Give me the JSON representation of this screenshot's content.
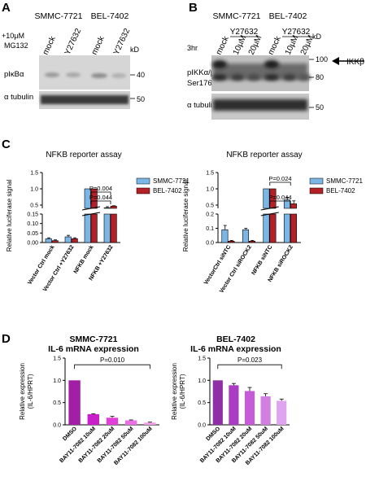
{
  "panels": {
    "A": "A",
    "B": "B",
    "C": "C",
    "D": "D"
  },
  "panel_a": {
    "cell_lines": [
      "SMMC-7721",
      "BEL-7402"
    ],
    "treatment_line1": "+10μM",
    "treatment_line2": "MG132",
    "lane_labels": [
      "mock",
      "Y27632",
      "mock",
      "Y27632"
    ],
    "kd_label": "kD",
    "row_labels": [
      "pIκBα",
      "α tubulin"
    ],
    "markers": [
      "40",
      "50"
    ]
  },
  "panel_b": {
    "cell_lines": [
      "SMMC-7721",
      "BEL-7402"
    ],
    "drug": "Y27632",
    "time": "3hr",
    "lane_labels": [
      "mock",
      "10μM",
      "20μM",
      "mock",
      "10μM",
      "20μM"
    ],
    "kd_label": "kD",
    "row_labels": [
      "pIKKα/β",
      "Ser176/180",
      "α tubulin"
    ],
    "markers": [
      "100",
      "80",
      "50"
    ],
    "arrow_label": "IKKβ"
  },
  "chart_data": [
    {
      "type": "bar",
      "title": "NFKB reporter assay",
      "ylabel": "Relative luciferase signal",
      "categories": [
        "Vector Ctrl mock",
        "Vector Ctrl +Y27632",
        "NFKB mock",
        "NFKB +Y27632"
      ],
      "series": [
        {
          "name": "SMMC-7721",
          "values": [
            0.02,
            0.03,
            1.0,
            0.42
          ],
          "errors": [
            0.005,
            0.008,
            0,
            0.03
          ],
          "color": "#7ab6e6"
        },
        {
          "name": "BEL-7402",
          "values": [
            0.01,
            0.02,
            1.0,
            0.47
          ],
          "errors": [
            0.004,
            0.005,
            0,
            0.01
          ],
          "color": "#b32025"
        }
      ],
      "ylim_lower": [
        0,
        0.15
      ],
      "ylim_upper": [
        0.4,
        1.5
      ],
      "yticks_lower": [
        "0.00",
        "0.05",
        "0.10",
        "0.15"
      ],
      "yticks_upper": [
        "0.5",
        "1.0",
        "1.5"
      ],
      "annotations": [
        "P=0.044",
        "P=0.004"
      ]
    },
    {
      "type": "bar",
      "title": "NFKB reporter assay",
      "ylabel": "Relative luciferase signal",
      "categories": [
        "VectorCtrl siNTC",
        "Vector Ctrl siROCK2",
        "NFKB siNTC",
        "NFKB siROCK2"
      ],
      "series": [
        {
          "name": "SMMC-7721",
          "values": [
            0.09,
            0.09,
            1.0,
            0.66
          ],
          "errors": [
            0.03,
            0.01,
            0,
            0.08
          ],
          "color": "#7ab6e6"
        },
        {
          "name": "BEL-7402",
          "values": [
            0.01,
            0.01,
            1.0,
            0.54
          ],
          "errors": [
            0.005,
            0.005,
            0,
            0.09
          ],
          "color": "#b32025"
        }
      ],
      "ylim_lower": [
        0,
        0.2
      ],
      "ylim_upper": [
        0.4,
        1.5
      ],
      "yticks_lower": [
        "0.0",
        "0.1",
        "0.2"
      ],
      "yticks_upper": [
        "0.5",
        "1.0",
        "1.5"
      ],
      "annotations": [
        "P=0.024",
        "P=0.044"
      ]
    },
    {
      "type": "bar",
      "title": "SMMC-7721\nIL-6 mRNA expression",
      "title_lines": [
        "SMMC-7721",
        "IL-6 mRNA expression"
      ],
      "ylabel_lines": [
        "Relative expression",
        "(IL-6/HPRT)"
      ],
      "categories": [
        "DMSO",
        "BAY11-7082 10uM",
        "BAY11-7082 20uM",
        "BAY11-7082 50uM",
        "BAY11-7082 100uM"
      ],
      "values": [
        1.0,
        0.24,
        0.16,
        0.1,
        0.05
      ],
      "errors": [
        0,
        0.01,
        0.03,
        0.01,
        0.01
      ],
      "colors": [
        "#a21fa5",
        "#c81fc9",
        "#e23fd8",
        "#ea6fe2",
        "#f29be9"
      ],
      "ylim": [
        0,
        1.5
      ],
      "yticks": [
        "0.0",
        "0.5",
        "1.0",
        "1.5"
      ],
      "annotations": [
        "P=0.010"
      ]
    },
    {
      "type": "bar",
      "title": "BEL-7402\nIL-6 mRNA expression",
      "title_lines": [
        "BEL-7402",
        "IL-6 mRNA expression"
      ],
      "ylabel_lines": [
        "Relative expression",
        "(IL-6/HPRT)"
      ],
      "categories": [
        "DMSO",
        "BAY11-7082 10uM",
        "BAY11-7082 20uM",
        "BAY11-7082 50uM",
        "BAY11-7082 100uM"
      ],
      "values": [
        1.0,
        0.89,
        0.76,
        0.64,
        0.54
      ],
      "errors": [
        0,
        0.04,
        0.08,
        0.06,
        0.04
      ],
      "colors": [
        "#8e2fa5",
        "#a93cc2",
        "#c65ad7",
        "#d27fe0",
        "#e0a4ee"
      ],
      "ylim": [
        0,
        1.5
      ],
      "yticks": [
        "0.0",
        "0.5",
        "1.0",
        "1.5"
      ],
      "annotations": [
        "P=0.023"
      ]
    }
  ]
}
